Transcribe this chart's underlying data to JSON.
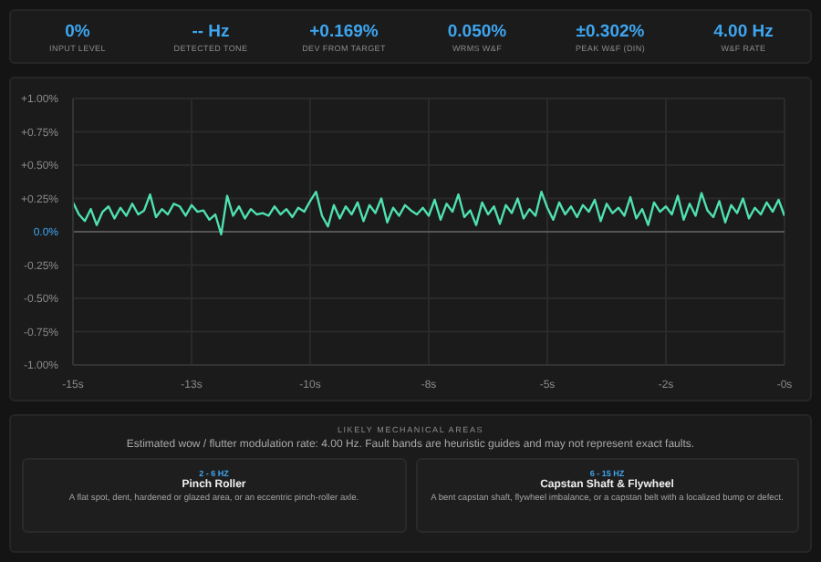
{
  "chart_data": [
    {
      "type": "other",
      "annotations": [
        "0%",
        "INPUT LEVEL",
        "-- Hz",
        "DETECTED TONE",
        "+0.169%",
        "DEV FROM TARGET",
        "0.050%",
        "WRMS W&F",
        "±0.302%",
        "PEAK W&F (DIN)",
        "4.00 Hz",
        "W&F RATE"
      ]
    },
    {
      "type": "line",
      "series": [
        {
          "color": "#4fe0b0",
          "x": [
            -15,
            -14.875,
            -14.75,
            -14.625,
            -14.5,
            -14.375,
            -14.25,
            -14.125,
            -14,
            -13.875,
            -13.75,
            -13.625,
            -13.5,
            -13.375,
            -13.25,
            -13.125,
            -13,
            -12.875,
            -12.75,
            -12.625,
            -12.5,
            -12.375,
            -12.25,
            -12.125,
            -12,
            -11.875,
            -11.75,
            -11.625,
            -11.5,
            -11.375,
            -11.25,
            -11.125,
            -11,
            -10.875,
            -10.75,
            -10.625,
            -10.5,
            -10.375,
            -10.25,
            -10.125,
            -10,
            -9.875,
            -9.75,
            -9.625,
            -9.5,
            -9.375,
            -9.25,
            -9.125,
            -9,
            -8.875,
            -8.75,
            -8.625,
            -8.5,
            -8.375,
            -8.25,
            -8.125,
            -8,
            -7.875,
            -7.75,
            -7.625,
            -7.5,
            -7.375,
            -7.25,
            -7.125,
            -7,
            -6.875,
            -6.75,
            -6.625,
            -6.5,
            -6.375,
            -6.25,
            -6.125,
            -6,
            -5.875,
            -5.75,
            -5.625,
            -5.5,
            -5.375,
            -5.25,
            -5.125,
            -5,
            -4.875,
            -4.75,
            -4.625,
            -4.5,
            -4.375,
            -4.25,
            -4.125,
            -4,
            -3.875,
            -3.75,
            -3.625,
            -3.5,
            -3.375,
            -3.25,
            -3.125,
            -3,
            -2.875,
            -2.75,
            -2.625,
            -2.5,
            -2.375,
            -2.25,
            -2.125,
            -2,
            -1.875,
            -1.75,
            -1.625,
            -1.5,
            -1.375,
            -1.25,
            -1.125,
            -1,
            -0.875,
            -0.75,
            -0.625,
            -0.5,
            -0.375,
            -0.25,
            -0.125,
            0
          ],
          "values": [
            0.22,
            0.13,
            0.08,
            0.17,
            0.05,
            0.15,
            0.19,
            0.1,
            0.18,
            0.12,
            0.21,
            0.13,
            0.16,
            0.28,
            0.11,
            0.17,
            0.13,
            0.21,
            0.19,
            0.12,
            0.2,
            0.15,
            0.16,
            0.09,
            0.13,
            -0.02,
            0.27,
            0.12,
            0.19,
            0.1,
            0.17,
            0.13,
            0.14,
            0.12,
            0.19,
            0.13,
            0.17,
            0.11,
            0.18,
            0.15,
            0.23,
            0.3,
            0.12,
            0.04,
            0.2,
            0.1,
            0.19,
            0.13,
            0.22,
            0.08,
            0.2,
            0.14,
            0.25,
            0.07,
            0.18,
            0.12,
            0.2,
            0.16,
            0.13,
            0.18,
            0.12,
            0.24,
            0.09,
            0.21,
            0.15,
            0.28,
            0.11,
            0.16,
            0.05,
            0.22,
            0.13,
            0.19,
            0.06,
            0.2,
            0.14,
            0.25,
            0.1,
            0.17,
            0.12,
            0.3,
            0.18,
            0.09,
            0.22,
            0.13,
            0.19,
            0.11,
            0.2,
            0.15,
            0.24,
            0.08,
            0.21,
            0.14,
            0.18,
            0.12,
            0.26,
            0.1,
            0.17,
            0.05,
            0.22,
            0.15,
            0.19,
            0.13,
            0.27,
            0.09,
            0.21,
            0.12,
            0.29,
            0.16,
            0.11,
            0.23,
            0.07,
            0.2,
            0.14,
            0.25,
            0.1,
            0.18,
            0.13,
            0.22,
            0.15,
            0.24,
            0.12
          ]
        }
      ],
      "xlim": [
        -15,
        0
      ],
      "xticks": [
        {
          "value": -15,
          "label": "-15s"
        },
        {
          "value": -12.5,
          "label": "-13s"
        },
        {
          "value": -10,
          "label": "-10s"
        },
        {
          "value": -7.5,
          "label": "-8s"
        },
        {
          "value": -5,
          "label": "-5s"
        },
        {
          "value": -2.5,
          "label": "-2s"
        },
        {
          "value": 0,
          "label": "-0s"
        }
      ],
      "ylim": [
        -1,
        1
      ],
      "yticks": [
        {
          "value": -1,
          "label": "-1.00%"
        },
        {
          "value": -0.75,
          "label": "-0.75%"
        },
        {
          "value": -0.5,
          "label": "-0.50%"
        },
        {
          "value": -0.25,
          "label": "-0.25%"
        },
        {
          "value": 0,
          "label": "0.0%"
        },
        {
          "value": 0.25,
          "label": "+0.25%"
        },
        {
          "value": 0.5,
          "label": "+0.50%"
        },
        {
          "value": 0.75,
          "label": "+0.75%"
        },
        {
          "value": 1,
          "label": "+1.00%"
        }
      ],
      "grid": true,
      "marker": "none",
      "line_style": "solid",
      "ref_lines": [
        {
          "axis": "y",
          "value": 0,
          "color": "#555555"
        }
      ]
    },
    {
      "type": "other",
      "title": "LIKELY MECHANICAL AREAS",
      "subtitle": "Estimated wow / flutter modulation rate: 4.00 Hz. Fault bands are heuristic guides and may not represent exact faults.",
      "annotations": [
        "2 - 6 HZ",
        "Pinch Roller",
        "A flat spot, dent, hardened or glazed area, or an eccentric pinch-roller axle.",
        "6 - 15 HZ",
        "Capstan Shaft & Flywheel",
        "A bent capstan shaft, flywheel imbalance, or a capstan belt with a localized bump or defect."
      ]
    }
  ]
}
